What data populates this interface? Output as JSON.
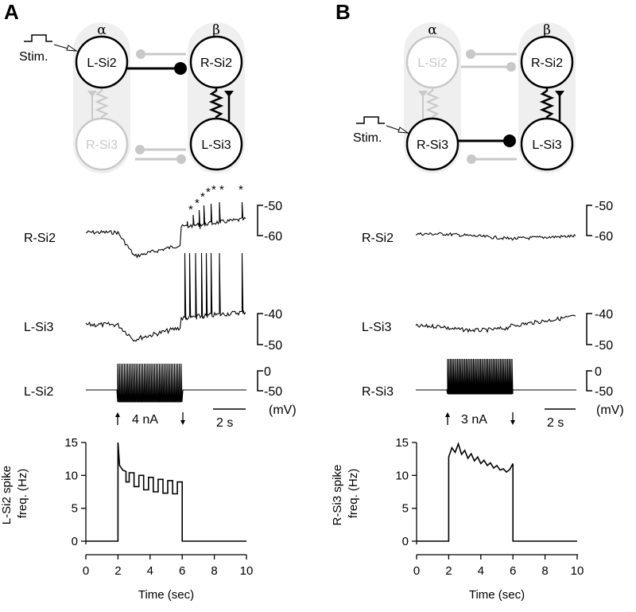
{
  "panels": [
    {
      "letter": "A",
      "diagram": {
        "col_alpha": "α",
        "col_beta": "β",
        "stim_label": "Stim.",
        "neurons": {
          "tl": "L-Si2",
          "tr": "R-Si2",
          "bl": "R-Si3",
          "br": "L-Si3"
        },
        "stimulated": "tl",
        "active_synapse": "top",
        "active_gap": "right"
      },
      "traces": {
        "r_label": "R-Si2",
        "r_scale": [
          "-50",
          "-60"
        ],
        "m_label": "L-Si3",
        "m_scale": [
          "-40",
          "-50"
        ],
        "b_label": "L-Si2",
        "b_scale": [
          "0",
          "-50"
        ],
        "units": "(mV)",
        "current": "4 nA",
        "timebar": "2 s",
        "asterisks": [
          "*",
          "*",
          "*",
          "*",
          "*",
          "*",
          "*"
        ]
      },
      "chart_data": {
        "type": "line",
        "ylabel": "L-Si2 spike freq. (Hz)",
        "xlabel": "Time (sec)",
        "xlim": [
          0,
          10
        ],
        "ylim": [
          0,
          15
        ],
        "xticks": [
          "0",
          "2",
          "4",
          "6",
          "8",
          "10"
        ],
        "yticks": [
          "0",
          "5",
          "10",
          "15"
        ],
        "x": [
          0,
          2,
          2,
          2.1,
          2.3,
          2.5,
          2.5,
          2.7,
          2.7,
          3.0,
          3.0,
          3.3,
          3.3,
          3.6,
          3.6,
          3.9,
          3.9,
          4.2,
          4.2,
          4.5,
          4.5,
          4.8,
          4.8,
          5.1,
          5.1,
          5.4,
          5.4,
          5.7,
          5.7,
          6,
          6,
          10
        ],
        "y": [
          0,
          0,
          15,
          11.5,
          10.8,
          10.6,
          9.0,
          9.0,
          10.4,
          10.4,
          8.3,
          8.3,
          10.0,
          10.0,
          7.8,
          7.8,
          9.7,
          9.7,
          7.5,
          7.5,
          9.4,
          9.4,
          7.3,
          7.3,
          9.2,
          9.2,
          7.2,
          7.2,
          9.0,
          9.0,
          0,
          0
        ]
      }
    },
    {
      "letter": "B",
      "diagram": {
        "col_alpha": "α",
        "col_beta": "β",
        "stim_label": "Stim.",
        "neurons": {
          "tl": "L-Si2",
          "tr": "R-Si2",
          "bl": "R-Si3",
          "br": "L-Si3"
        },
        "stimulated": "bl",
        "active_synapse": "bottom",
        "active_gap": "right"
      },
      "traces": {
        "r_label": "R-Si2",
        "r_scale": [
          "-50",
          "-60"
        ],
        "m_label": "L-Si3",
        "m_scale": [
          "-40",
          "-50"
        ],
        "b_label": "R-Si3",
        "b_scale": [
          "0",
          "-50"
        ],
        "units": "(mV)",
        "current": "3 nA",
        "timebar": "2 s",
        "asterisks": []
      },
      "chart_data": {
        "type": "line",
        "ylabel": "R-Si3 spike freq. (Hz)",
        "xlabel": "Time (sec)",
        "xlim": [
          0,
          10
        ],
        "ylim": [
          0,
          15
        ],
        "xticks": [
          "0",
          "2",
          "4",
          "6",
          "8",
          "10"
        ],
        "yticks": [
          "0",
          "5",
          "10",
          "15"
        ],
        "x": [
          0,
          2,
          2,
          2.2,
          2.4,
          2.6,
          2.8,
          3.0,
          3.2,
          3.4,
          3.6,
          3.8,
          4.0,
          4.2,
          4.4,
          4.6,
          4.8,
          5.0,
          5.2,
          5.4,
          5.6,
          5.8,
          6,
          6,
          10
        ],
        "y": [
          0,
          0,
          12.8,
          14.2,
          13.5,
          14.8,
          13.2,
          13.8,
          12.6,
          13.3,
          12.2,
          12.8,
          11.8,
          12.3,
          11.5,
          11.9,
          11.1,
          11.5,
          10.8,
          11.0,
          10.5,
          10.9,
          11.8,
          0,
          0
        ]
      }
    }
  ]
}
